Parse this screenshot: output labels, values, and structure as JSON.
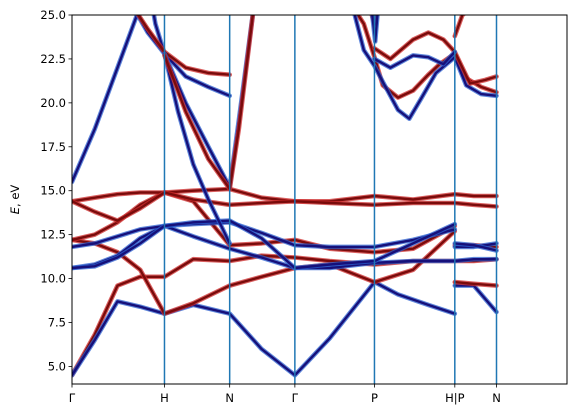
{
  "chart_data": {
    "type": "line",
    "title": "",
    "xlabel": "",
    "ylabel_parts": [
      "E",
      ", eV"
    ],
    "ylim": [
      4.0,
      25.0
    ],
    "xlim": [
      0.0,
      6.53
    ],
    "ytick_values": [
      5.0,
      7.5,
      10.0,
      12.5,
      15.0,
      17.5,
      20.0,
      22.5,
      25.0
    ],
    "ytick_labels": [
      "5.0",
      "7.5",
      "10.0",
      "12.5",
      "15.0",
      "17.5",
      "20.0",
      "22.5",
      "25.0"
    ],
    "high_symmetry_points": [
      {
        "x": 0.0,
        "label": "Γ"
      },
      {
        "x": 1.22,
        "label": "H"
      },
      {
        "x": 2.08,
        "label": "N"
      },
      {
        "x": 2.94,
        "label": "Γ"
      },
      {
        "x": 3.99,
        "label": "P"
      },
      {
        "x": 5.05,
        "label": "H|P"
      },
      {
        "x": 5.6,
        "label": "N"
      }
    ],
    "vertical_lines": [
      1.22,
      2.08,
      2.94,
      3.99,
      5.05,
      5.6
    ],
    "grid": false,
    "legend": "none",
    "colors": {
      "red_series": "#7a0b0b",
      "red_edge": "#cc2a2a",
      "blue_series": "#16107a",
      "blue_edge": "#2a5fcf",
      "vline": "#1f77b4"
    },
    "series": [
      {
        "color_key": "red",
        "x": [
          0.0,
          0.3,
          0.6,
          0.9,
          1.22,
          1.6,
          2.08,
          2.5,
          2.94,
          3.4,
          3.99,
          4.5,
          5.05,
          5.05,
          5.3,
          5.6
        ],
        "y": [
          4.5,
          6.8,
          9.6,
          10.1,
          10.1,
          11.1,
          11.0,
          11.3,
          11.2,
          11.0,
          10.8,
          11.0,
          11.0,
          11.0,
          11.0,
          11.1
        ]
      },
      {
        "color_key": "blue",
        "x": [
          0.0,
          0.3,
          0.6,
          0.9,
          1.22,
          1.6,
          2.08,
          2.5,
          2.94,
          3.4,
          3.99,
          4.3,
          4.7,
          5.05,
          5.05,
          5.3,
          5.6
        ],
        "y": [
          4.5,
          6.5,
          8.7,
          8.4,
          8.0,
          8.5,
          8.0,
          6.0,
          4.5,
          6.6,
          9.8,
          9.1,
          8.5,
          8.0,
          9.6,
          9.6,
          8.1
        ]
      },
      {
        "color_key": "red",
        "x": [
          0.0,
          0.3,
          0.6,
          0.9,
          1.22,
          1.6,
          2.08,
          2.5,
          2.94,
          3.4,
          3.99,
          4.5,
          5.05,
          5.05,
          5.3,
          5.6
        ],
        "y": [
          12.2,
          12.0,
          11.5,
          10.5,
          8.0,
          8.6,
          9.6,
          10.1,
          10.6,
          10.8,
          9.8,
          10.5,
          12.7,
          9.8,
          9.7,
          9.6
        ]
      },
      {
        "color_key": "blue",
        "x": [
          0.0,
          0.3,
          0.6,
          0.9,
          1.22,
          1.6,
          2.08,
          2.5,
          2.94,
          3.4,
          3.99,
          4.5,
          5.05,
          5.05,
          5.3,
          5.6
        ],
        "y": [
          10.6,
          10.8,
          11.3,
          12.3,
          13.0,
          12.4,
          11.7,
          11.2,
          10.6,
          10.6,
          10.9,
          11.0,
          11.0,
          11.0,
          11.1,
          11.1
        ]
      },
      {
        "color_key": "red",
        "x": [
          0.0,
          0.3,
          0.6,
          0.9,
          1.22,
          1.6,
          2.08,
          2.5,
          2.94,
          3.4,
          3.99,
          4.5,
          5.05,
          5.05,
          5.3,
          5.6
        ],
        "y": [
          12.2,
          12.5,
          13.2,
          14.2,
          14.9,
          14.4,
          11.9,
          12.0,
          12.2,
          11.7,
          11.5,
          11.7,
          13.0,
          11.9,
          11.9,
          11.8
        ]
      },
      {
        "color_key": "blue",
        "x": [
          0.0,
          0.3,
          0.6,
          0.9,
          1.22,
          1.6,
          2.08,
          2.5,
          2.94,
          3.4,
          3.99,
          4.5,
          5.05,
          5.05,
          5.3,
          5.6
        ],
        "y": [
          11.8,
          12.0,
          12.4,
          12.8,
          13.0,
          13.1,
          13.2,
          12.6,
          11.9,
          11.8,
          11.8,
          12.2,
          12.8,
          11.8,
          11.8,
          12.0
        ]
      },
      {
        "color_key": "red",
        "x": [
          0.0,
          0.3,
          0.6,
          0.9,
          1.22,
          1.6,
          2.08,
          2.5,
          2.94,
          3.4,
          3.99,
          4.5,
          5.05,
          5.05,
          5.3,
          5.6
        ],
        "y": [
          14.4,
          14.6,
          14.8,
          14.9,
          14.9,
          15.0,
          15.1,
          14.6,
          14.4,
          14.4,
          14.7,
          14.5,
          14.8,
          14.8,
          14.7,
          14.7
        ]
      },
      {
        "color_key": "red",
        "x": [
          0.0,
          0.3,
          0.6,
          0.9,
          1.22,
          1.6,
          2.08,
          2.5,
          2.94,
          3.4,
          3.99,
          4.5,
          5.05,
          5.05,
          5.3,
          5.6
        ],
        "y": [
          14.4,
          13.8,
          13.3,
          14.0,
          14.9,
          14.5,
          14.2,
          14.3,
          14.4,
          14.3,
          14.2,
          14.3,
          14.3,
          14.3,
          14.2,
          14.1
        ]
      },
      {
        "color_key": "blue",
        "x": [
          0.0,
          0.3,
          0.6,
          0.9,
          1.22,
          1.6,
          2.08,
          2.5,
          2.94,
          3.4,
          3.99,
          4.5,
          5.05,
          5.05,
          5.3,
          5.6
        ],
        "y": [
          10.6,
          10.7,
          11.2,
          12.0,
          13.0,
          13.2,
          13.3,
          12.3,
          10.6,
          10.8,
          11.0,
          12.0,
          13.1,
          12.0,
          11.9,
          11.6
        ]
      },
      {
        "color_key": "blue",
        "x": [
          0.0,
          0.3,
          0.6,
          0.9,
          1.0,
          1.1,
          1.22,
          1.4,
          1.6,
          1.8,
          2.08
        ],
        "y": [
          15.5,
          18.5,
          22.0,
          25.5,
          27.0,
          24.5,
          22.8,
          19.5,
          16.5,
          14.5,
          12.0
        ]
      },
      {
        "color_key": "blue",
        "x": [
          0.8,
          1.0,
          1.22,
          1.5,
          1.8,
          2.08
        ],
        "y": [
          25.5,
          24.0,
          22.8,
          21.5,
          20.9,
          20.4
        ]
      },
      {
        "color_key": "red",
        "x": [
          0.8,
          1.0,
          1.22,
          1.5,
          1.8,
          2.08
        ],
        "y": [
          25.5,
          24.2,
          22.9,
          22.0,
          21.7,
          21.6
        ]
      },
      {
        "color_key": "blue",
        "x": [
          1.22,
          1.5,
          1.8,
          2.08,
          2.2,
          2.4
        ],
        "y": [
          22.8,
          20.0,
          17.5,
          15.2,
          19.0,
          25.5
        ]
      },
      {
        "color_key": "red",
        "x": [
          1.22,
          1.5,
          1.8,
          2.08,
          2.2,
          2.4
        ],
        "y": [
          22.7,
          19.5,
          16.8,
          15.1,
          18.5,
          25.5
        ]
      },
      {
        "color_key": "red",
        "x": [
          3.7,
          3.85,
          3.99,
          4.1,
          4.3,
          4.5,
          4.7,
          4.85,
          5.05,
          5.2,
          5.4,
          5.6
        ],
        "y": [
          25.5,
          24.5,
          22.6,
          21.0,
          20.3,
          20.7,
          21.6,
          22.2,
          22.8,
          21.4,
          20.9,
          20.6
        ]
      },
      {
        "color_key": "blue",
        "x": [
          3.7,
          3.85,
          3.99,
          4.1,
          4.3,
          4.45,
          4.6,
          4.8,
          5.05,
          5.2,
          5.4,
          5.6
        ],
        "y": [
          25.5,
          23.0,
          22.1,
          21.2,
          19.6,
          19.1,
          20.2,
          21.7,
          22.6,
          21.0,
          20.5,
          20.4
        ]
      },
      {
        "color_key": "red",
        "x": [
          3.99,
          4.2,
          4.5,
          4.7,
          4.9,
          5.05,
          5.25,
          5.45,
          5.6
        ],
        "y": [
          23.1,
          22.5,
          23.6,
          24.0,
          23.6,
          22.9,
          21.1,
          21.3,
          21.5
        ]
      },
      {
        "color_key": "blue",
        "x": [
          3.99,
          4.2,
          4.5,
          4.7,
          4.9,
          5.05
        ],
        "y": [
          22.5,
          22.0,
          22.7,
          22.6,
          22.2,
          22.9
        ]
      },
      {
        "color_key": "red",
        "x": [
          3.92,
          3.99,
          4.02
        ],
        "y": [
          25.5,
          24.5,
          25.5
        ]
      },
      {
        "color_key": "blue",
        "x": [
          3.95,
          4.0,
          4.04
        ],
        "y": [
          25.5,
          23.5,
          25.5
        ]
      },
      {
        "color_key": "red",
        "x": [
          5.05,
          5.15,
          5.3
        ],
        "y": [
          23.8,
          25.0,
          25.5
        ]
      }
    ]
  }
}
